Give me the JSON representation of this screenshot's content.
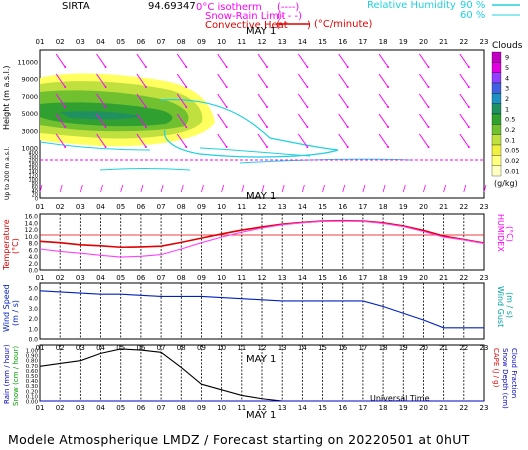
{
  "header": {
    "station": "SIRTA",
    "station_value": "94.69347",
    "legend_freezing": "0°C isotherm",
    "legend_snow": "Snow-Rain Limit",
    "legend_convective": "Convective Heat",
    "legend_convective_unit": "(°C/minute)",
    "legend_rh": "Relative Humidity",
    "rh_90": "90 %",
    "rh_60": "60 %"
  },
  "hours": [
    "01",
    "02",
    "03",
    "04",
    "05",
    "06",
    "07",
    "08",
    "09",
    "10",
    "11",
    "12",
    "13",
    "14",
    "15",
    "16",
    "17",
    "18",
    "19",
    "20",
    "21",
    "22",
    "23"
  ],
  "date_label": "MAY  1",
  "clouds": {
    "title": "Clouds",
    "levels": [
      "9",
      "5",
      "4",
      "3",
      "2",
      "1",
      "0.5",
      "0.2",
      "0.1",
      "0.05",
      "0.02",
      "0.01"
    ],
    "colors": [
      "#c000c0",
      "#e000e0",
      "#9040ff",
      "#4060e0",
      "#2090c0",
      "#209060",
      "#30a030",
      "#70c030",
      "#c0e040",
      "#f0f040",
      "#ffff80",
      "#ffffc0"
    ],
    "unit": "(g/kg)"
  },
  "panels": {
    "height": {
      "ylabel": "Height  (m a.s.l.)",
      "ylabel2": "Up to 200 m a.s.l.",
      "ticks": [
        "11000",
        "9000",
        "7000",
        "5000",
        "3000",
        "1000",
        "400",
        "300",
        "200",
        "180",
        "160",
        "140",
        "120",
        "100",
        "80",
        "60",
        "40",
        "20",
        "0"
      ]
    },
    "temperature": {
      "ylabel": "Temperature",
      "ylabel2": "(°C)",
      "right_label": "HUMIDEX",
      "right_unit": "(°C)",
      "ticks": [
        "16.0",
        "14.0",
        "12.0",
        "10.0",
        "8.0",
        "6.0",
        "4.0",
        "2.0",
        "0.0"
      ]
    },
    "wind": {
      "ylabel": "Wind Speed",
      "ylabel2": "(m / s)",
      "right_label": "Wind Gust",
      "right_unit": "(m / s)",
      "ticks": [
        "5.0",
        "4.0",
        "3.0",
        "2.0",
        "1.0",
        "0.0"
      ]
    },
    "rain": {
      "ylabel": "Rain (mm / hour)",
      "ylabel2": "Snow (cm / hour)",
      "right_label": "CAPE (J / g)",
      "right_label2": "Snow Depth (cm)",
      "right_label3": "Cloud Fraction",
      "ticks": [
        "1.00",
        "0.90",
        "0.80",
        "0.70",
        "0.60",
        "0.50",
        "0.40",
        "0.30",
        "0.20",
        "0.10",
        "0.00"
      ]
    }
  },
  "x_axis_title": "Universal Time",
  "footer": "Modele Atmospherique LMDZ / Forecast starting on 20220501 at 0hUT",
  "chart_data": [
    {
      "type": "line",
      "title": "Temperature",
      "x": [
        "01",
        "02",
        "03",
        "04",
        "05",
        "06",
        "07",
        "08",
        "09",
        "10",
        "11",
        "12",
        "13",
        "14",
        "15",
        "16",
        "17",
        "18",
        "19",
        "20",
        "21",
        "22",
        "23"
      ],
      "series": [
        {
          "name": "Temperature",
          "color": "#e00000",
          "values": [
            8.2,
            7.8,
            7.2,
            6.9,
            6.5,
            6.6,
            6.8,
            7.9,
            9.1,
            10.3,
            11.4,
            12.3,
            13.1,
            13.6,
            14.0,
            14.1,
            14.0,
            13.5,
            12.6,
            11.3,
            9.7,
            8.7,
            7.7
          ]
        },
        {
          "name": "HUMIDEX",
          "color": "#ff40ff",
          "values": [
            6.0,
            5.3,
            4.8,
            4.2,
            3.7,
            3.9,
            4.4,
            6.0,
            7.8,
            9.4,
            10.8,
            12.0,
            12.9,
            13.5,
            13.9,
            14.0,
            13.9,
            13.3,
            12.4,
            11.0,
            9.4,
            8.6,
            7.6
          ]
        }
      ],
      "ylim": [
        0,
        16
      ],
      "refline": 10
    },
    {
      "type": "line",
      "title": "Wind Speed",
      "x": [
        "01",
        "02",
        "03",
        "04",
        "05",
        "06",
        "07",
        "08",
        "09",
        "10",
        "11",
        "12",
        "13",
        "14",
        "15",
        "16",
        "17",
        "18",
        "19",
        "20",
        "21",
        "22",
        "23"
      ],
      "series": [
        {
          "name": "Wind Speed",
          "color": "#0020c0",
          "values": [
            4.3,
            4.2,
            4.1,
            4.0,
            4.0,
            3.9,
            3.8,
            3.8,
            3.8,
            3.7,
            3.6,
            3.5,
            3.4,
            3.4,
            3.4,
            3.4,
            3.4,
            2.9,
            2.3,
            1.7,
            1.0,
            1.0,
            1.0
          ]
        }
      ],
      "ylim": [
        0,
        5
      ]
    },
    {
      "type": "line",
      "title": "Rain",
      "x": [
        "01",
        "02",
        "03",
        "04",
        "05",
        "06",
        "07",
        "08",
        "09",
        "10",
        "11",
        "12",
        "13",
        "14",
        "15",
        "16",
        "17",
        "18",
        "19",
        "20",
        "21",
        "22",
        "23"
      ],
      "series": [
        {
          "name": "Cloud Fraction",
          "color": "#000000",
          "values": [
            0.62,
            0.67,
            0.72,
            0.85,
            0.93,
            0.91,
            0.87,
            0.6,
            0.3,
            0.2,
            0.1,
            0.04,
            0.0,
            0.0,
            0.0,
            0.0,
            0.0,
            0.0,
            0.0,
            0.0,
            0.0,
            0.0,
            0.0
          ]
        },
        {
          "name": "Rain",
          "color": "#0000c0",
          "values": [
            0,
            0,
            0,
            0,
            0,
            0,
            0,
            0,
            0,
            0,
            0,
            0,
            0,
            0,
            0,
            0,
            0,
            0,
            0,
            0,
            0,
            0,
            0
          ]
        }
      ],
      "ylim": [
        0,
        1
      ]
    }
  ]
}
